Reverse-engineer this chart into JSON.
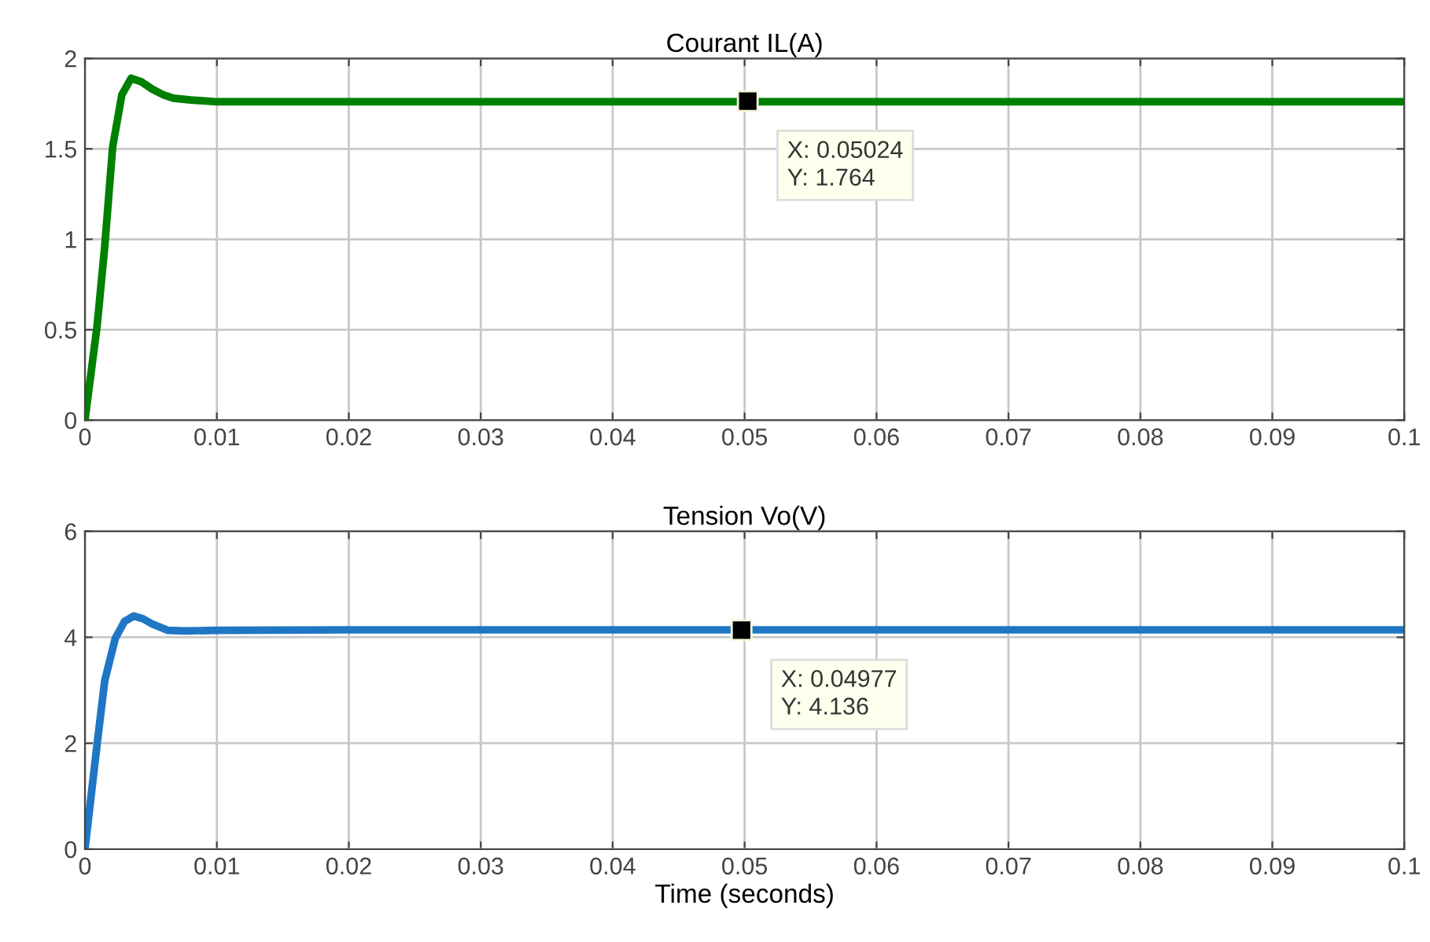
{
  "chart_data": [
    {
      "type": "line",
      "title": "Courant IL(A)",
      "x": [
        0,
        0.00092,
        0.0015,
        0.0021,
        0.0028,
        0.0035,
        0.0043,
        0.0051,
        0.0059,
        0.0067,
        0.008,
        0.01,
        0.02,
        0.03,
        0.04,
        0.05024,
        0.06,
        0.07,
        0.08,
        0.09,
        0.1
      ],
      "series": [
        {
          "color": "#008000",
          "values": [
            0,
            0.52,
            0.96,
            1.51,
            1.8,
            1.89,
            1.87,
            1.83,
            1.8,
            1.78,
            1.77,
            1.76,
            1.76,
            1.76,
            1.76,
            1.76,
            1.76,
            1.76,
            1.76,
            1.76,
            1.76
          ]
        }
      ],
      "xlim": [
        0,
        0.1
      ],
      "xticks": [
        0,
        0.01,
        0.02,
        0.03,
        0.04,
        0.05,
        0.06,
        0.07,
        0.08,
        0.09,
        0.1
      ],
      "ylim": [
        0,
        2
      ],
      "yticks": [
        0,
        0.5,
        1,
        1.5,
        2
      ],
      "grid": true,
      "line_style": "solid",
      "marker": "none",
      "annotations": [
        {
          "text": "X: 0.05024\nY: 1.764",
          "x": 0.05024,
          "y": 1.764
        }
      ]
    },
    {
      "type": "line",
      "title": "Tension Vo(V)",
      "xlabel": "Time (seconds)",
      "x": [
        0,
        0.00092,
        0.0015,
        0.0023,
        0.003,
        0.0037,
        0.0044,
        0.0051,
        0.0063,
        0.0075,
        0.01,
        0.02,
        0.03,
        0.04,
        0.04977,
        0.06,
        0.07,
        0.08,
        0.09,
        0.1
      ],
      "series": [
        {
          "color": "#1f77c4",
          "values": [
            0,
            1.98,
            3.18,
            3.98,
            4.3,
            4.4,
            4.35,
            4.25,
            4.13,
            4.12,
            4.13,
            4.14,
            4.14,
            4.14,
            4.14,
            4.14,
            4.14,
            4.14,
            4.14,
            4.14
          ]
        }
      ],
      "xlim": [
        0,
        0.1
      ],
      "xticks": [
        0,
        0.01,
        0.02,
        0.03,
        0.04,
        0.05,
        0.06,
        0.07,
        0.08,
        0.09,
        0.1
      ],
      "ylim": [
        0,
        6
      ],
      "yticks": [
        0,
        2,
        4,
        6
      ],
      "grid": true,
      "line_style": "solid",
      "marker": "none",
      "annotations": [
        {
          "text": "X: 0.04977\nY: 4.136",
          "x": 0.04977,
          "y": 4.136
        }
      ]
    }
  ]
}
